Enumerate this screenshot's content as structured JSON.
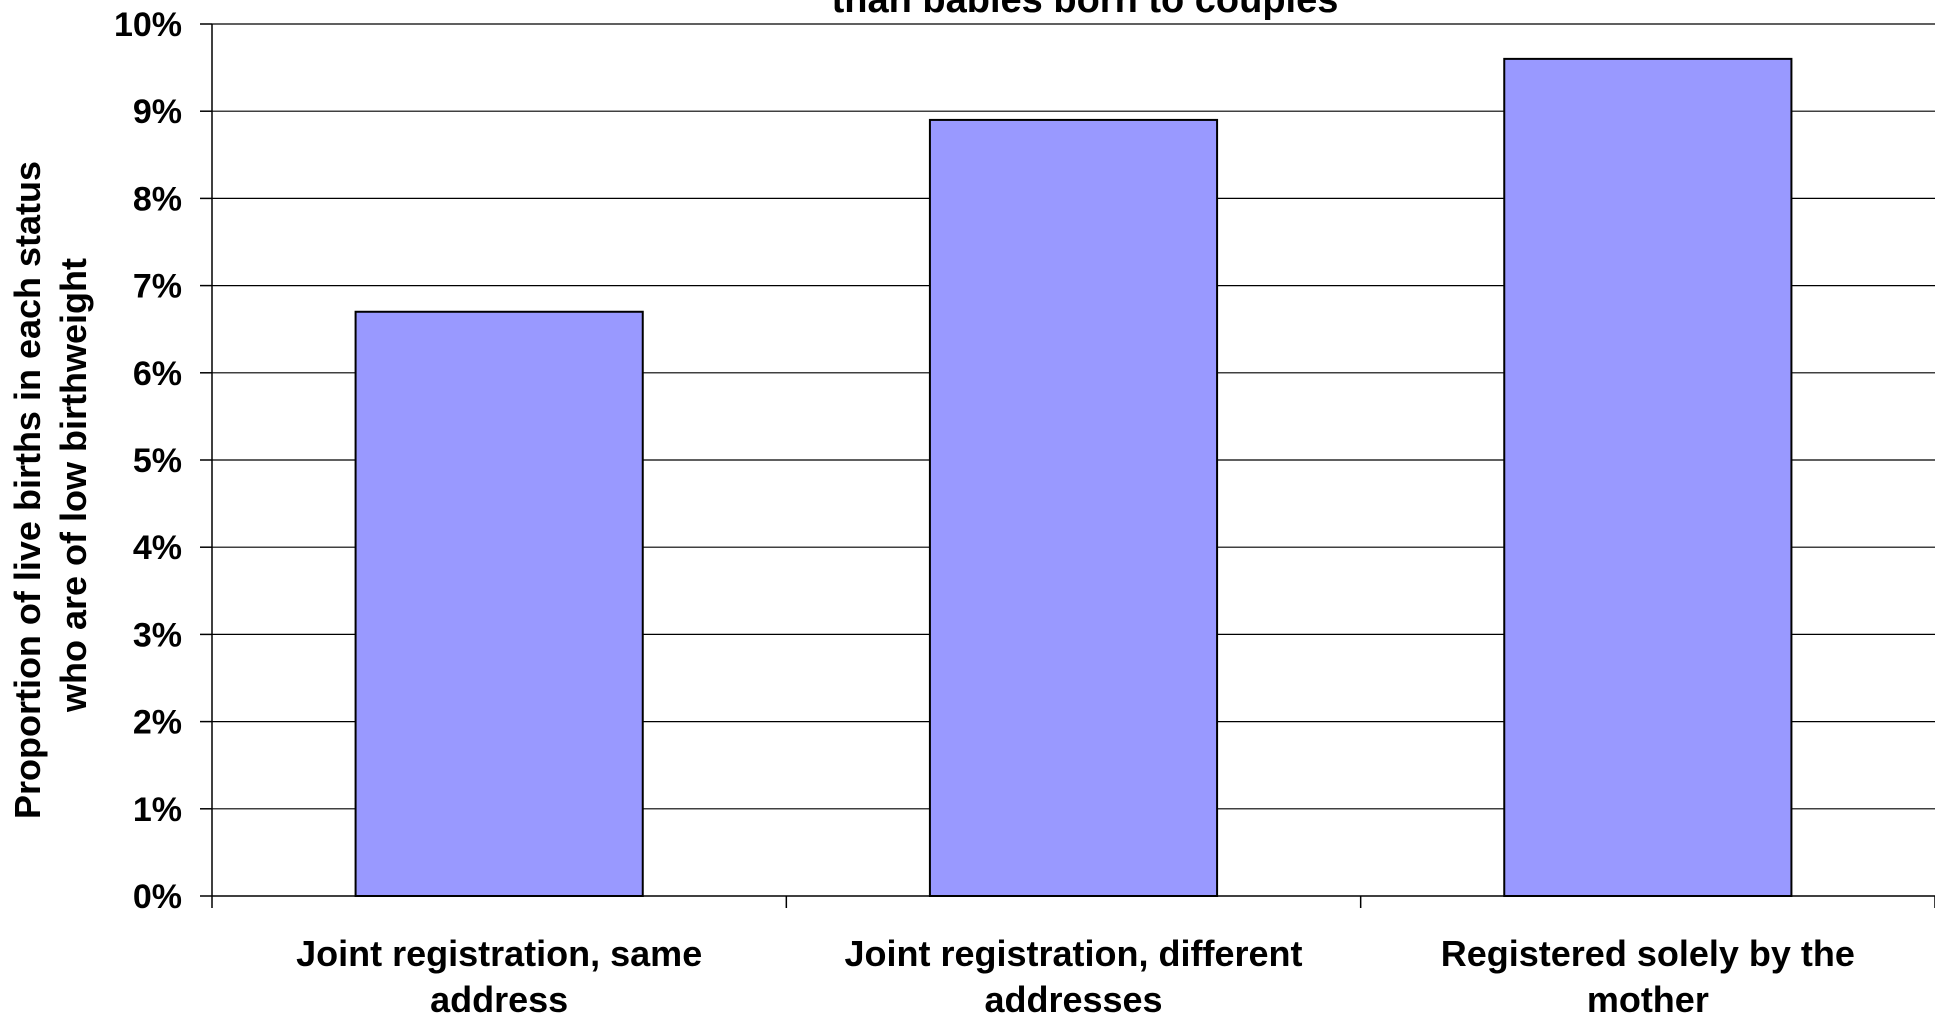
{
  "chart_data": {
    "type": "bar",
    "title": "than babies born to couples",
    "ylabel_lines": [
      "Proportion of live births in each status",
      "who are of low birthweight"
    ],
    "xlabel": "",
    "categories": [
      [
        "Joint registration, same",
        "address"
      ],
      [
        "Joint registration, different",
        "addresses"
      ],
      [
        "Registered solely by the",
        "mother"
      ]
    ],
    "values": [
      6.7,
      8.9,
      9.6
    ],
    "ylim": [
      0,
      10
    ],
    "yticks": [
      "0%",
      "1%",
      "2%",
      "3%",
      "4%",
      "5%",
      "6%",
      "7%",
      "8%",
      "9%",
      "10%"
    ],
    "grid": true,
    "bar_color": "#9999ff",
    "bar_edge_color": "#000000"
  }
}
